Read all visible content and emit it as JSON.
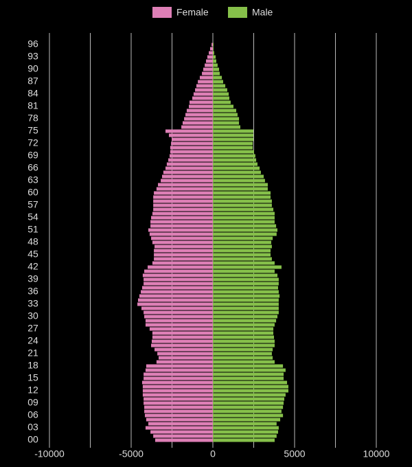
{
  "chart_data": {
    "type": "pyramid",
    "categories": [
      "00",
      null,
      null,
      "03",
      null,
      null,
      "06",
      null,
      null,
      "09",
      null,
      null,
      "12",
      null,
      null,
      "15",
      null,
      null,
      "18",
      null,
      null,
      "21",
      null,
      null,
      "24",
      null,
      null,
      "27",
      null,
      null,
      "30",
      null,
      null,
      "33",
      null,
      null,
      "36",
      null,
      null,
      "39",
      null,
      null,
      "42",
      null,
      null,
      "45",
      null,
      null,
      "48",
      null,
      null,
      "51",
      null,
      null,
      "54",
      null,
      null,
      "57",
      null,
      null,
      "60",
      null,
      null,
      "63",
      null,
      null,
      "66",
      null,
      null,
      "69",
      null,
      null,
      "72",
      null,
      null,
      "75",
      null,
      null,
      "78",
      null,
      null,
      "81",
      null,
      null,
      "84",
      null,
      null,
      "87",
      null,
      null,
      "90",
      null,
      null,
      "93",
      null,
      null,
      "96"
    ],
    "series": [
      {
        "name": "Female",
        "color": "#de7fb6",
        "values": [
          -3530,
          -3650,
          -3820,
          -4120,
          -3950,
          -4080,
          -4160,
          -4200,
          -4200,
          -4240,
          -4240,
          -4290,
          -4290,
          -4290,
          -4330,
          -4240,
          -4240,
          -4120,
          -4080,
          -3450,
          -3320,
          -3400,
          -3570,
          -3780,
          -3740,
          -3700,
          -3700,
          -3870,
          -4120,
          -4120,
          -4200,
          -4240,
          -4370,
          -4620,
          -4580,
          -4500,
          -4410,
          -4330,
          -4240,
          -4240,
          -4290,
          -4200,
          -3990,
          -3700,
          -3610,
          -3610,
          -3610,
          -3570,
          -3700,
          -3780,
          -3870,
          -3950,
          -3820,
          -3820,
          -3780,
          -3700,
          -3650,
          -3650,
          -3650,
          -3650,
          -3610,
          -3450,
          -3360,
          -3190,
          -3110,
          -3030,
          -2900,
          -2820,
          -2730,
          -2650,
          -2610,
          -2610,
          -2560,
          -2520,
          -2690,
          -2900,
          -1930,
          -1850,
          -1760,
          -1680,
          -1600,
          -1470,
          -1430,
          -1260,
          -1180,
          -1090,
          -1010,
          -920,
          -800,
          -670,
          -590,
          -500,
          -420,
          -340,
          -250,
          -170,
          -80
        ]
      },
      {
        "name": "Male",
        "color": "#86c04a",
        "values": [
          3780,
          3900,
          3990,
          4030,
          3900,
          4120,
          4290,
          4200,
          4290,
          4330,
          4370,
          4450,
          4620,
          4620,
          4540,
          4330,
          4330,
          4450,
          4290,
          3780,
          3660,
          3610,
          3660,
          3780,
          3780,
          3740,
          3700,
          3700,
          3780,
          3870,
          3950,
          4030,
          4030,
          4030,
          4030,
          4080,
          4030,
          3990,
          4030,
          4030,
          3950,
          3780,
          4200,
          3780,
          3610,
          3530,
          3530,
          3610,
          3570,
          3660,
          3900,
          3950,
          3870,
          3780,
          3780,
          3780,
          3700,
          3610,
          3610,
          3530,
          3530,
          3360,
          3360,
          3190,
          3110,
          2940,
          2860,
          2730,
          2650,
          2600,
          2520,
          2440,
          2440,
          2480,
          2480,
          2480,
          1680,
          1600,
          1600,
          1510,
          1430,
          1260,
          1090,
          1010,
          970,
          880,
          760,
          630,
          550,
          420,
          380,
          290,
          210,
          170,
          80,
          40,
          40
        ]
      }
    ],
    "xlim": [
      -10000,
      10000
    ],
    "xticks": [
      -10000,
      -5000,
      0,
      5000,
      10000
    ],
    "xgrid": [
      -10000,
      -7500,
      -5000,
      -2500,
      0,
      2500,
      5000,
      7500,
      10000
    ],
    "legend": "top"
  }
}
